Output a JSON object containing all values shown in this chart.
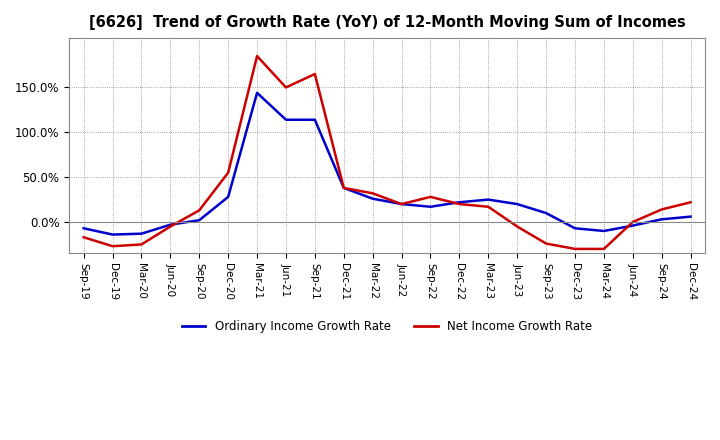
{
  "title": "[6626]  Trend of Growth Rate (YoY) of 12-Month Moving Sum of Incomes",
  "x_labels": [
    "Sep-19",
    "Dec-19",
    "Mar-20",
    "Jun-20",
    "Sep-20",
    "Dec-20",
    "Mar-21",
    "Jun-21",
    "Sep-21",
    "Dec-21",
    "Mar-22",
    "Jun-22",
    "Sep-22",
    "Dec-22",
    "Mar-23",
    "Jun-23",
    "Sep-23",
    "Dec-23",
    "Mar-24",
    "Jun-24",
    "Sep-24",
    "Dec-24"
  ],
  "ordinary_income": [
    -0.07,
    -0.14,
    -0.13,
    -0.03,
    0.02,
    0.28,
    1.44,
    1.14,
    1.14,
    0.38,
    0.26,
    0.2,
    0.17,
    0.22,
    0.25,
    0.2,
    0.1,
    -0.07,
    -0.1,
    -0.04,
    0.03,
    0.06
  ],
  "net_income": [
    -0.17,
    -0.27,
    -0.25,
    -0.05,
    0.13,
    0.55,
    1.85,
    1.5,
    1.65,
    0.38,
    0.32,
    0.2,
    0.28,
    0.2,
    0.17,
    -0.05,
    -0.24,
    -0.3,
    -0.3,
    0.0,
    0.14,
    0.22
  ],
  "ordinary_color": "#0000cc",
  "net_color": "#cc0000",
  "bg_color": "#ffffff",
  "plot_bg_color": "#ffffff",
  "ylim_min": -0.35,
  "ylim_max": 2.05,
  "ytick_vals": [
    0.0,
    0.5,
    1.0,
    1.5
  ],
  "ytick_labels": [
    "0.0%",
    "50.0%",
    "100.0%",
    "150.0%"
  ],
  "legend_ordinary": "Ordinary Income Growth Rate",
  "legend_net": "Net Income Growth Rate",
  "line_width": 1.8
}
